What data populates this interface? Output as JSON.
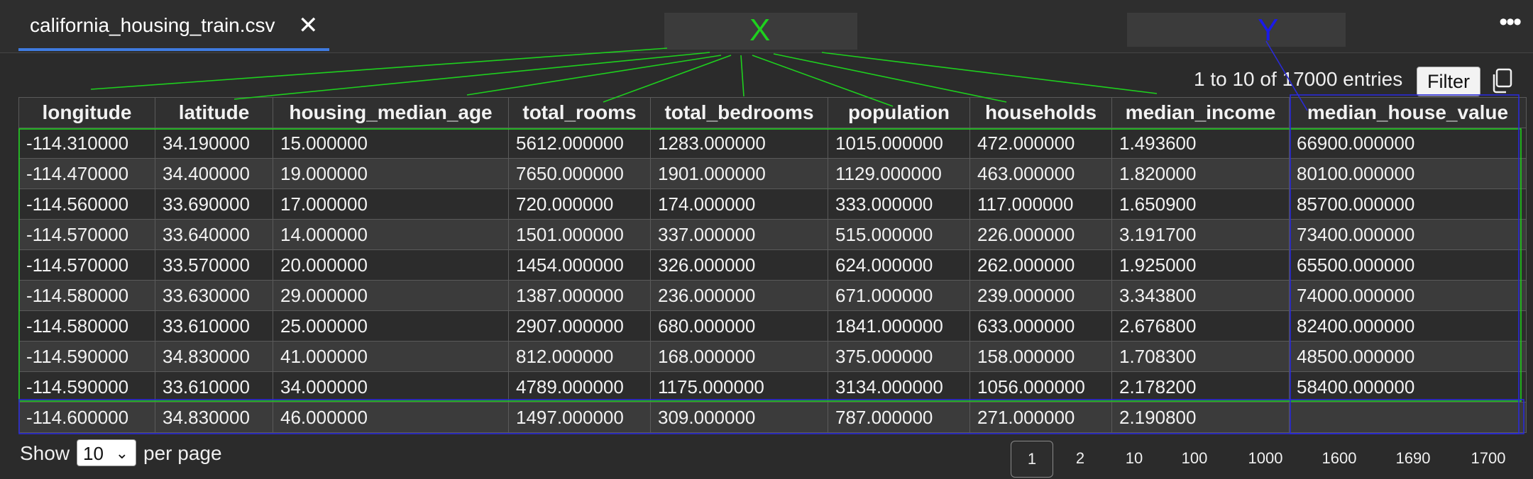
{
  "tab": {
    "title": "california_housing_train.csv",
    "close_glyph": "✕"
  },
  "more_glyph": "•••",
  "overlay_labels": {
    "x": "X",
    "y": "Y",
    "x_color": "#1ed01e",
    "y_color": "#1a1ae8"
  },
  "toolbar": {
    "entries": "1 to 10 of 17000 entries",
    "filter_label": "Filter",
    "copy_icon": "copy-icon"
  },
  "table": {
    "columns": [
      "longitude",
      "latitude",
      "housing_median_age",
      "total_rooms",
      "total_bedrooms",
      "population",
      "households",
      "median_income",
      "median_house_value"
    ],
    "rows": [
      [
        "-114.310000",
        "34.190000",
        "15.000000",
        "5612.000000",
        "1283.000000",
        "1015.000000",
        "472.000000",
        "1.493600",
        "66900.000000"
      ],
      [
        "-114.470000",
        "34.400000",
        "19.000000",
        "7650.000000",
        "1901.000000",
        "1129.000000",
        "463.000000",
        "1.820000",
        "80100.000000"
      ],
      [
        "-114.560000",
        "33.690000",
        "17.000000",
        "720.000000",
        "174.000000",
        "333.000000",
        "117.000000",
        "1.650900",
        "85700.000000"
      ],
      [
        "-114.570000",
        "33.640000",
        "14.000000",
        "1501.000000",
        "337.000000",
        "515.000000",
        "226.000000",
        "3.191700",
        "73400.000000"
      ],
      [
        "-114.570000",
        "33.570000",
        "20.000000",
        "1454.000000",
        "326.000000",
        "624.000000",
        "262.000000",
        "1.925000",
        "65500.000000"
      ],
      [
        "-114.580000",
        "33.630000",
        "29.000000",
        "1387.000000",
        "236.000000",
        "671.000000",
        "239.000000",
        "3.343800",
        "74000.000000"
      ],
      [
        "-114.580000",
        "33.610000",
        "25.000000",
        "2907.000000",
        "680.000000",
        "1841.000000",
        "633.000000",
        "2.676800",
        "82400.000000"
      ],
      [
        "-114.590000",
        "34.830000",
        "41.000000",
        "812.000000",
        "168.000000",
        "375.000000",
        "158.000000",
        "1.708300",
        "48500.000000"
      ],
      [
        "-114.590000",
        "33.610000",
        "34.000000",
        "4789.000000",
        "1175.000000",
        "3134.000000",
        "1056.000000",
        "2.178200",
        "58400.000000"
      ],
      [
        "-114.600000",
        "34.830000",
        "46.000000",
        "1497.000000",
        "309.000000",
        "787.000000",
        "271.000000",
        "2.190800",
        ""
      ]
    ]
  },
  "pagination": {
    "show_label": "Show",
    "per_page_value": "10",
    "per_page_label": "per page",
    "pages": [
      "1",
      "2",
      "10",
      "100",
      "1000",
      "1600",
      "1690",
      "1700"
    ],
    "active_page": "1"
  }
}
